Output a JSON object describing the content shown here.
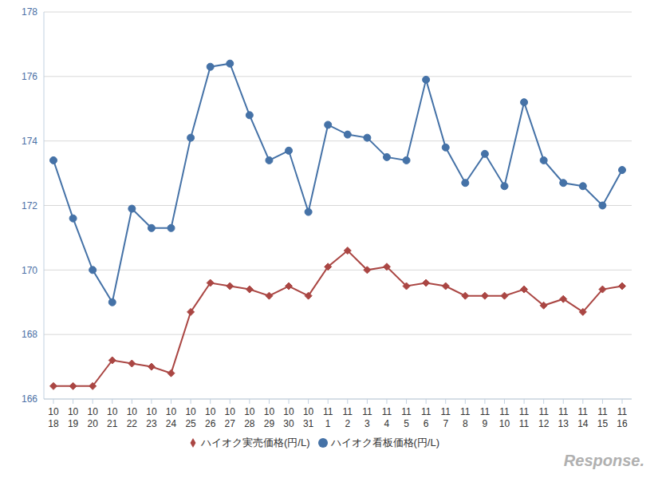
{
  "chart_data": {
    "type": "line",
    "categories": [
      "10\n18",
      "10\n19",
      "10\n20",
      "10\n21",
      "10\n22",
      "10\n23",
      "10\n24",
      "10\n25",
      "10\n26",
      "10\n27",
      "10\n28",
      "10\n29",
      "10\n30",
      "10\n31",
      "11\n1",
      "11\n2",
      "11\n3",
      "11\n4",
      "11\n5",
      "11\n6",
      "11\n7",
      "11\n8",
      "11\n9",
      "11\n10",
      "11\n11",
      "11\n12",
      "11\n13",
      "11\n14",
      "11\n15",
      "11\n16"
    ],
    "series": [
      {
        "name": "ハイオク看板価格(円/L)",
        "color": "#4572a7",
        "marker": "circle",
        "line_style": "solid",
        "values": [
          173.4,
          171.6,
          170.0,
          169.0,
          171.9,
          171.3,
          171.3,
          174.1,
          176.3,
          176.4,
          174.8,
          173.4,
          173.7,
          171.8,
          174.5,
          174.2,
          174.1,
          173.5,
          173.4,
          175.9,
          173.8,
          172.7,
          173.6,
          172.6,
          175.2,
          173.4,
          172.7,
          172.6,
          172.0,
          173.1
        ]
      },
      {
        "name": "ハイオク実売価格(円/L)",
        "color": "#aa4643",
        "marker": "diamond",
        "line_style": "solid",
        "values": [
          166.4,
          166.4,
          166.4,
          167.2,
          167.1,
          167.0,
          166.8,
          168.7,
          169.6,
          169.5,
          169.4,
          169.2,
          169.5,
          169.2,
          170.1,
          170.6,
          170.0,
          170.1,
          169.5,
          169.6,
          169.5,
          169.2,
          169.2,
          169.2,
          169.4,
          168.9,
          169.1,
          168.7,
          169.4,
          169.5
        ]
      }
    ],
    "ylim": [
      166,
      178
    ],
    "yticks": [
      166,
      168,
      170,
      172,
      174,
      176,
      178
    ],
    "grid": true,
    "legend": "bottom",
    "annotations": [
      "Response."
    ]
  }
}
